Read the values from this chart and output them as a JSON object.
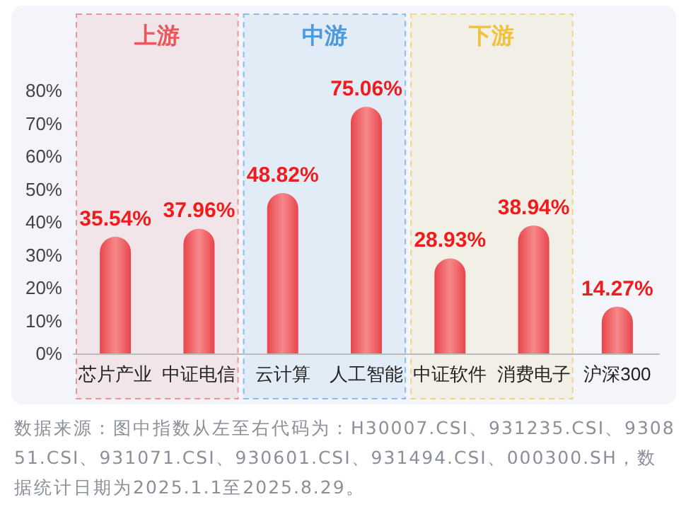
{
  "chart_data": {
    "type": "bar",
    "categories": [
      "芯片产业",
      "中证电信",
      "云计算",
      "人工智能",
      "中证软件",
      "消费电子",
      "沪深300"
    ],
    "values": [
      35.54,
      37.96,
      48.82,
      75.06,
      28.93,
      38.94,
      14.27
    ],
    "value_labels": [
      "35.54%",
      "37.96%",
      "48.82%",
      "75.06%",
      "28.93%",
      "38.94%",
      "14.27%"
    ],
    "color": "#e8464b",
    "ylim": [
      0,
      80
    ],
    "yticks": [
      {
        "value": 0,
        "label": "0%"
      },
      {
        "value": 10,
        "label": "10%"
      },
      {
        "value": 20,
        "label": "20%"
      },
      {
        "value": 30,
        "label": "30%"
      },
      {
        "value": 40,
        "label": "40%"
      },
      {
        "value": 50,
        "label": "50%"
      },
      {
        "value": 60,
        "label": "60%"
      },
      {
        "value": 70,
        "label": "70%"
      },
      {
        "value": 80,
        "label": "80%"
      }
    ],
    "grid": false,
    "bands": [
      {
        "axis": "x",
        "from": "芯片产业",
        "to": "中证电信",
        "label": "上游",
        "color": "#e8585c"
      },
      {
        "axis": "x",
        "from": "云计算",
        "to": "人工智能",
        "label": "中游",
        "color": "#4a9ae0"
      },
      {
        "axis": "x",
        "from": "中证软件",
        "to": "消费电子",
        "label": "下游",
        "color": "#f0c23c"
      }
    ],
    "annotations": [
      "数据来源：图中指数从左至右代码为：H30007.CSI、931235.CSI、930851.CSI、931071.CSI、930601.CSI、931494.CSI、000300.SH，数据统计日期为2025.1.1至2025.8.29。"
    ]
  }
}
